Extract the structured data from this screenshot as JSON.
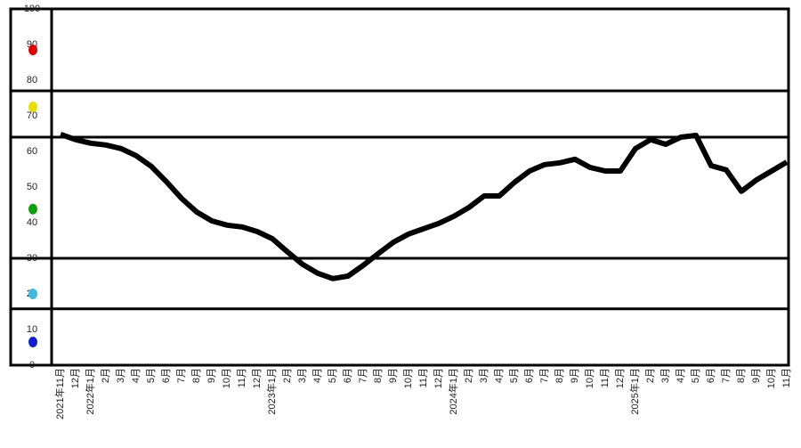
{
  "chart_data": {
    "type": "line",
    "categories": [
      "2021年11月",
      "12月",
      "2022年1月",
      "2月",
      "3月",
      "4月",
      "5月",
      "6月",
      "7月",
      "8月",
      "9月",
      "10月",
      "11月",
      "12月",
      "2023年1月",
      "2月",
      "3月",
      "4月",
      "5月",
      "6月",
      "7月",
      "8月",
      "9月",
      "10月",
      "11月",
      "12月",
      "2024年1月",
      "2月",
      "3月",
      "4月",
      "5月",
      "6月",
      "7月",
      "8月",
      "9月",
      "10月",
      "11月",
      "12月",
      "2025年1月",
      "2月",
      "3月",
      "4月",
      "5月",
      "6月",
      "7月",
      "8月",
      "9月",
      "10月",
      "11月"
    ],
    "series": [
      {
        "color": "#000000",
        "values": [
          64.8,
          63.3,
          62.3,
          61.8,
          60.8,
          58.8,
          55.8,
          51.5,
          46.8,
          43,
          40.5,
          39.3,
          38.8,
          37.5,
          35.5,
          31.8,
          28.3,
          25.8,
          24.3,
          25,
          28,
          31.3,
          34.5,
          36.8,
          38.3,
          39.8,
          41.8,
          44.3,
          47.5,
          47.5,
          51.3,
          54.5,
          56.3,
          56.8,
          57.8,
          55.5,
          54.5,
          54.5,
          60.8,
          63.3,
          62,
          64,
          64.5,
          56,
          54.8,
          48.8,
          52,
          54.5,
          57
        ]
      }
    ],
    "ylim": [
      0,
      100
    ],
    "yticks": [
      0,
      10,
      20,
      30,
      40,
      50,
      60,
      70,
      80,
      90,
      100
    ],
    "reference_lines": [
      15.8,
      30,
      64,
      77
    ],
    "signal_lights": [
      {
        "value": 88.5,
        "color": "#e00000"
      },
      {
        "value": 72.5,
        "color": "#e8e000"
      },
      {
        "value": 43.8,
        "color": "#10a010"
      },
      {
        "value": 20,
        "color": "#40b8e0"
      },
      {
        "value": 6.5,
        "color": "#1020d0"
      }
    ]
  }
}
